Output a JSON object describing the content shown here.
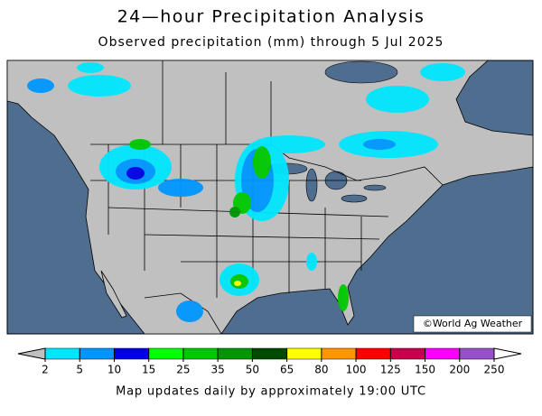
{
  "header": {
    "title": "24—hour Precipitation Analysis",
    "subtitle": "Observed precipitation (mm) through 5 Jul 2025"
  },
  "map": {
    "credit": "©World Ag Weather"
  },
  "legend": {
    "ticks": [
      2,
      5,
      10,
      15,
      25,
      35,
      50,
      65,
      80,
      100,
      125,
      150,
      200,
      250
    ],
    "colors": [
      "#00e6ff",
      "#0096ff",
      "#0000e6",
      "#00ff00",
      "#00c800",
      "#009600",
      "#004b00",
      "#ffff00",
      "#ff9600",
      "#ff0000",
      "#c8004b",
      "#ff00ff",
      "#9650c8"
    ],
    "below_color": "#c0c0c0",
    "above_color": "#ffffff"
  },
  "footer": {
    "note": "Map updates daily by approximately 19:00 UTC"
  }
}
